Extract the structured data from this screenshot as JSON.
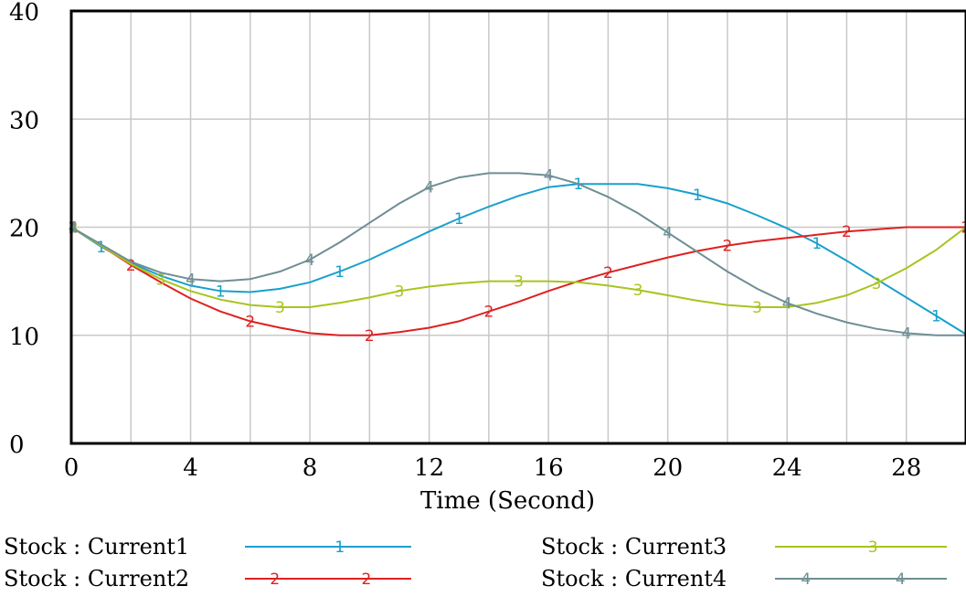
{
  "chart_data": {
    "type": "line",
    "xlabel": "Time (Second)",
    "ylabel": "",
    "xlim": [
      0,
      30
    ],
    "ylim": [
      0,
      40
    ],
    "xticks": [
      0,
      4,
      8,
      12,
      16,
      20,
      24,
      28
    ],
    "yticks": [
      0,
      10,
      20,
      30,
      40
    ],
    "grid": true,
    "legend_position": "bottom",
    "series": [
      {
        "name": "Stock : Current1",
        "marker": "1",
        "color": "#1aa0cc",
        "x": [
          0,
          1,
          2,
          3,
          4,
          5,
          6,
          7,
          8,
          9,
          10,
          11,
          12,
          13,
          14,
          15,
          16,
          17,
          18,
          19,
          20,
          21,
          22,
          23,
          24,
          25,
          26,
          27,
          28,
          29,
          30
        ],
        "y": [
          20,
          18.2,
          16.7,
          15.5,
          14.6,
          14.1,
          14.0,
          14.3,
          14.9,
          15.9,
          17.0,
          18.3,
          19.6,
          20.8,
          21.9,
          22.9,
          23.7,
          24.0,
          24.0,
          24.0,
          23.6,
          23.0,
          22.2,
          21.1,
          19.9,
          18.5,
          16.9,
          15.2,
          13.5,
          11.8,
          10.1
        ]
      },
      {
        "name": "Stock : Current2",
        "marker": "2",
        "color": "#e02020",
        "x": [
          0,
          1,
          2,
          3,
          4,
          5,
          6,
          7,
          8,
          9,
          10,
          11,
          12,
          13,
          14,
          15,
          16,
          17,
          18,
          19,
          20,
          21,
          22,
          23,
          24,
          25,
          26,
          27,
          28,
          29,
          30
        ],
        "y": [
          20,
          18.3,
          16.5,
          14.9,
          13.4,
          12.2,
          11.3,
          10.7,
          10.2,
          10.0,
          10.0,
          10.3,
          10.7,
          11.3,
          12.2,
          13.1,
          14.1,
          15.0,
          15.8,
          16.5,
          17.2,
          17.8,
          18.3,
          18.7,
          19.0,
          19.3,
          19.6,
          19.8,
          20.0,
          20.0,
          20.0
        ]
      },
      {
        "name": "Stock : Current3",
        "marker": "3",
        "color": "#a8c41e",
        "x": [
          0,
          1,
          2,
          3,
          4,
          5,
          6,
          7,
          8,
          9,
          10,
          11,
          12,
          13,
          14,
          15,
          16,
          17,
          18,
          19,
          20,
          21,
          22,
          23,
          24,
          25,
          26,
          27,
          28,
          29,
          30
        ],
        "y": [
          20,
          18.3,
          16.6,
          15.2,
          14.1,
          13.3,
          12.8,
          12.6,
          12.6,
          13.0,
          13.5,
          14.1,
          14.5,
          14.8,
          15.0,
          15.0,
          15.0,
          14.9,
          14.6,
          14.2,
          13.7,
          13.2,
          12.8,
          12.6,
          12.6,
          13.0,
          13.7,
          14.8,
          16.2,
          17.9,
          20.0
        ]
      },
      {
        "name": "Stock : Current4",
        "marker": "4",
        "color": "#6e8e94",
        "x": [
          0,
          1,
          2,
          3,
          4,
          5,
          6,
          7,
          8,
          9,
          10,
          11,
          12,
          13,
          14,
          15,
          16,
          17,
          18,
          19,
          20,
          21,
          22,
          23,
          24,
          25,
          26,
          27,
          28,
          29,
          30
        ],
        "y": [
          20,
          18.4,
          16.8,
          15.8,
          15.2,
          15.0,
          15.2,
          15.9,
          17.0,
          18.6,
          20.4,
          22.2,
          23.7,
          24.6,
          25.0,
          25.0,
          24.8,
          24.0,
          22.8,
          21.3,
          19.5,
          17.7,
          15.9,
          14.3,
          13.0,
          12.0,
          11.2,
          10.6,
          10.2,
          10.0,
          10.0
        ]
      }
    ]
  }
}
